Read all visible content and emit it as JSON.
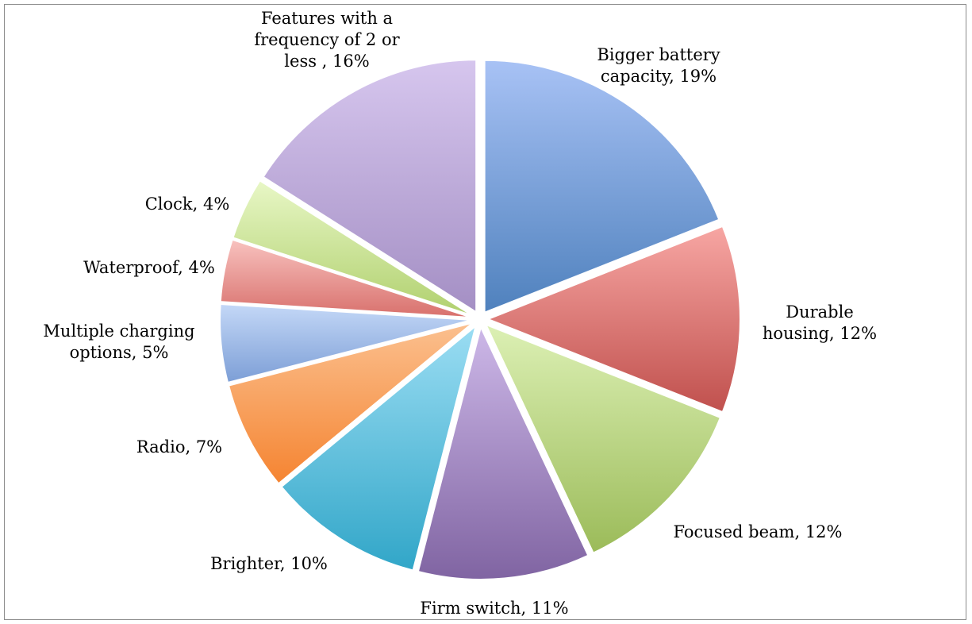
{
  "chart_data": {
    "type": "pie",
    "title": "",
    "slices": [
      {
        "label": "Bigger battery capacity",
        "value": 19,
        "display": "19%",
        "color": "#4F81BD",
        "color_light": "#A8C2F5",
        "label_lines": [
          "Bigger battery",
          "capacity, 19%"
        ]
      },
      {
        "label": "Durable housing",
        "value": 12,
        "display": "12%",
        "color": "#C0504D",
        "color_light": "#F7A6A3",
        "label_lines": [
          "Durable",
          "housing, 12%"
        ]
      },
      {
        "label": "Focused beam",
        "value": 12,
        "display": "12%",
        "color": "#9BBB59",
        "color_light": "#DCF0B4",
        "label_lines": [
          "Focused beam, 12%"
        ]
      },
      {
        "label": "Firm switch",
        "value": 11,
        "display": "11%",
        "color": "#8064A2",
        "color_light": "#CDB8E8",
        "label_lines": [
          "Firm switch, 11%"
        ]
      },
      {
        "label": "Brighter",
        "value": 10,
        "display": "10%",
        "color": "#31A6C8",
        "color_light": "#9BDDF3",
        "label_lines": [
          "Brighter, 10%"
        ]
      },
      {
        "label": "Radio",
        "value": 7,
        "display": "7%",
        "color": "#F58431",
        "color_light": "#FBC08F",
        "label_lines": [
          "Radio, 7%"
        ]
      },
      {
        "label": "Multiple charging options",
        "value": 5,
        "display": "5%",
        "color": "#7C9ED6",
        "color_light": "#C4D8F7",
        "label_lines": [
          "Multiple charging",
          "options, 5%"
        ]
      },
      {
        "label": "Waterproof",
        "value": 4,
        "display": "4%",
        "color": "#D8706C",
        "color_light": "#F8C2BF",
        "label_lines": [
          "Waterproof, 4%"
        ]
      },
      {
        "label": "Clock",
        "value": 4,
        "display": "4%",
        "color": "#B0D06E",
        "color_light": "#E8F7C6",
        "label_lines": [
          "Clock, 4%"
        ]
      },
      {
        "label": "Features with a frequency of 2 or less",
        "value": 16,
        "display": "16%",
        "color": "#A48FC4",
        "color_light": "#D6C6EE",
        "label_lines": [
          "Features with a",
          "frequency of 2 or",
          "less , 16%"
        ]
      }
    ],
    "legend": "none",
    "start_angle": "12 o'clock, clockwise",
    "exploded": true
  }
}
